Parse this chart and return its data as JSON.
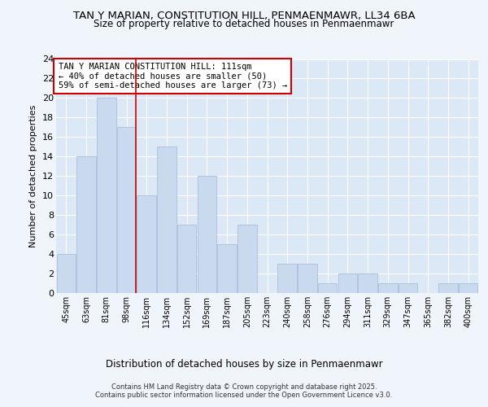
{
  "title_line1": "TAN Y MARIAN, CONSTITUTION HILL, PENMAENMAWR, LL34 6BA",
  "title_line2": "Size of property relative to detached houses in Penmaenmawr",
  "xlabel": "Distribution of detached houses by size in Penmaenmawr",
  "ylabel": "Number of detached properties",
  "categories": [
    "45sqm",
    "63sqm",
    "81sqm",
    "98sqm",
    "116sqm",
    "134sqm",
    "152sqm",
    "169sqm",
    "187sqm",
    "205sqm",
    "223sqm",
    "240sqm",
    "258sqm",
    "276sqm",
    "294sqm",
    "311sqm",
    "329sqm",
    "347sqm",
    "365sqm",
    "382sqm",
    "400sqm"
  ],
  "values": [
    4,
    14,
    20,
    17,
    10,
    15,
    7,
    12,
    5,
    7,
    0,
    3,
    3,
    1,
    2,
    2,
    1,
    1,
    0,
    1,
    1
  ],
  "bar_color": "#c9d9ee",
  "bar_edge_color": "#b0c4de",
  "red_line_index": 4,
  "ylim": [
    0,
    24
  ],
  "yticks": [
    0,
    2,
    4,
    6,
    8,
    10,
    12,
    14,
    16,
    18,
    20,
    22,
    24
  ],
  "annotation_text": "TAN Y MARIAN CONSTITUTION HILL: 111sqm\n← 40% of detached houses are smaller (50)\n59% of semi-detached houses are larger (73) →",
  "annotation_box_color": "#ffffff",
  "annotation_box_edge": "#cc0000",
  "bg_color": "#f0f4fb",
  "plot_bg_color": "#dce8f5",
  "grid_color": "#ffffff",
  "footer_text": "Contains HM Land Registry data © Crown copyright and database right 2025.\nContains public sector information licensed under the Open Government Licence v3.0.",
  "red_line_color": "#cc0000",
  "title_fontsize": 9.5,
  "subtitle_fontsize": 8.5,
  "annotation_fontsize": 7.5,
  "ylabel_fontsize": 8,
  "xlabel_fontsize": 8.5
}
